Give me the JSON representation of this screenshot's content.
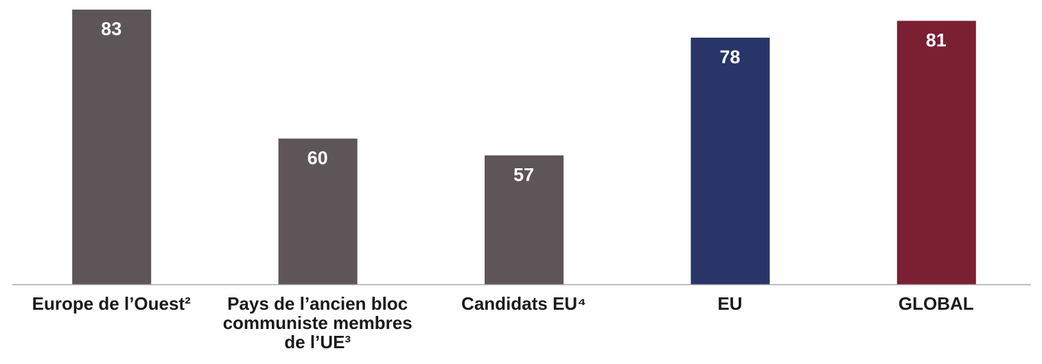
{
  "chart_data": {
    "type": "bar",
    "categories": [
      "Europe de l’Ouest²",
      "Pays de l’ancien bloc communiste membres de l’UE³",
      "Candidats EU⁴",
      "EU",
      "GLOBAL"
    ],
    "values": [
      83,
      60,
      57,
      78,
      81
    ],
    "colors": [
      "#5e5558",
      "#5e5558",
      "#5e5558",
      "#283568",
      "#7b1f33"
    ],
    "ylim": [
      34,
      83
    ]
  }
}
